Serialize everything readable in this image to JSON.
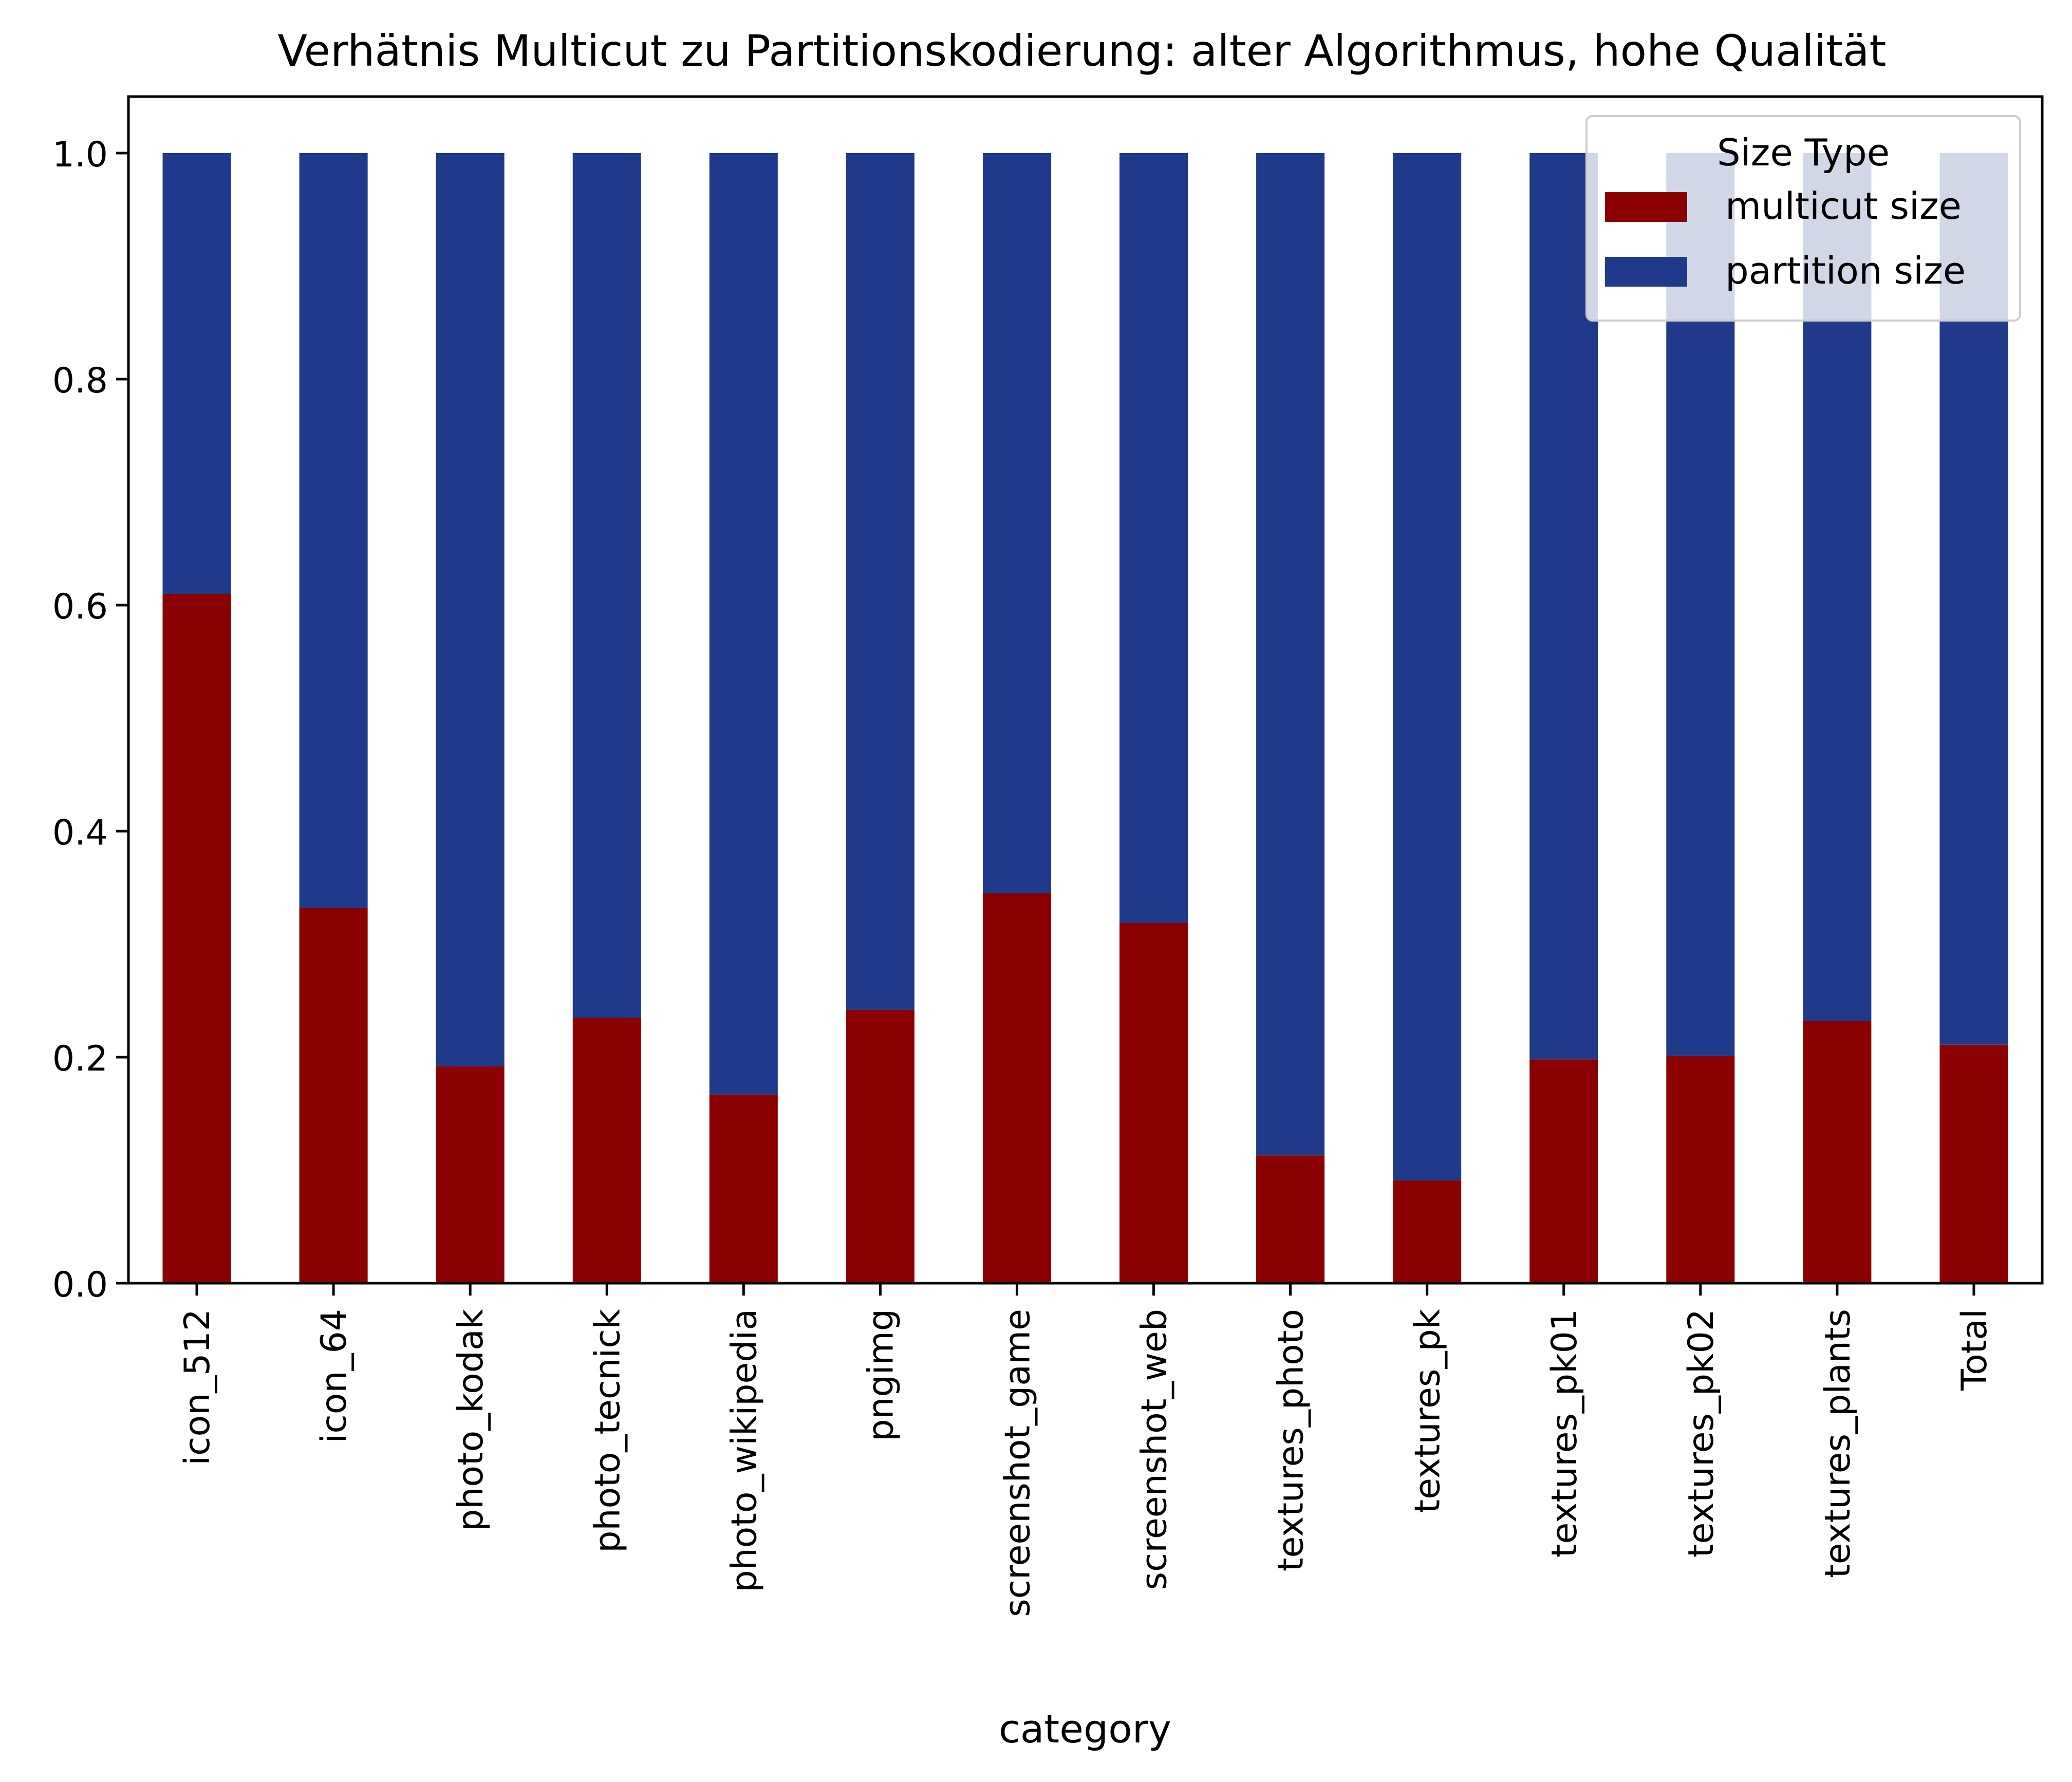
{
  "chart_data": {
    "type": "bar",
    "stacked": true,
    "title": "Verhätnis Multicut zu Partitionskodierung: alter Algorithmus, hohe Qualität",
    "xlabel": "category",
    "ylabel": "",
    "ylim": [
      0,
      1.05
    ],
    "yticks": [
      "0.0",
      "0.2",
      "0.4",
      "0.6",
      "0.8",
      "1.0"
    ],
    "grid": false,
    "legend": {
      "title": "Size Type",
      "placement": "top-right"
    },
    "categories": [
      "icon_512",
      "icon_64",
      "photo_kodak",
      "photo_tecnick",
      "photo_wikipedia",
      "pngimg",
      "screenshot_game",
      "screenshot_web",
      "textures_photo",
      "textures_pk",
      "textures_pk01",
      "textures_pk02",
      "textures_plants",
      "Total"
    ],
    "series": [
      {
        "name": "multicut size",
        "color": "#8b0000",
        "values": [
          0.61,
          0.332,
          0.192,
          0.235,
          0.167,
          0.242,
          0.345,
          0.319,
          0.113,
          0.091,
          0.198,
          0.201,
          0.232,
          0.211
        ]
      },
      {
        "name": "partition size",
        "color": "#1f3a8a",
        "values": [
          0.39,
          0.668,
          0.808,
          0.765,
          0.833,
          0.758,
          0.655,
          0.681,
          0.887,
          0.909,
          0.802,
          0.799,
          0.768,
          0.789
        ]
      }
    ]
  }
}
